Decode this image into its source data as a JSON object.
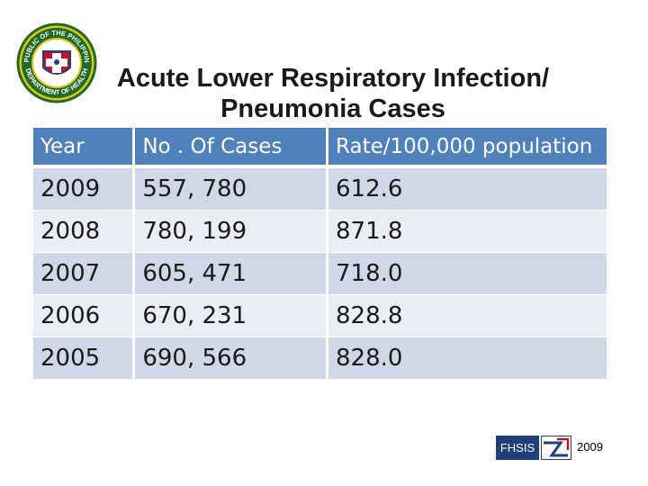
{
  "seal": {
    "text_top": "REPUBLIC OF THE PHILIPPINES",
    "text_bottom": "DEPARTMENT OF HEALTH"
  },
  "title": {
    "line1": "Acute Lower Respiratory Infection/",
    "line2": "Pneumonia Cases"
  },
  "table": {
    "headers": [
      "Year",
      "No . Of Cases",
      "Rate/100,000 population"
    ],
    "rows": [
      [
        "2009",
        "557, 780",
        "612.6"
      ],
      [
        "2008",
        "780, 199",
        "871.8"
      ],
      [
        "2007",
        "605, 471",
        "718.0"
      ],
      [
        "2006",
        "670, 231",
        "828.8"
      ],
      [
        "2005",
        "690, 566",
        "828.0"
      ]
    ]
  },
  "footer": {
    "logo_text": "FHSIS",
    "year": "2009"
  },
  "colors": {
    "header_bg": "#4f81bd",
    "row_dark": "#d0d8e8",
    "row_light": "#e9edf4",
    "logo_blue": "#1f3f7d",
    "logo_red": "#c8102e"
  }
}
